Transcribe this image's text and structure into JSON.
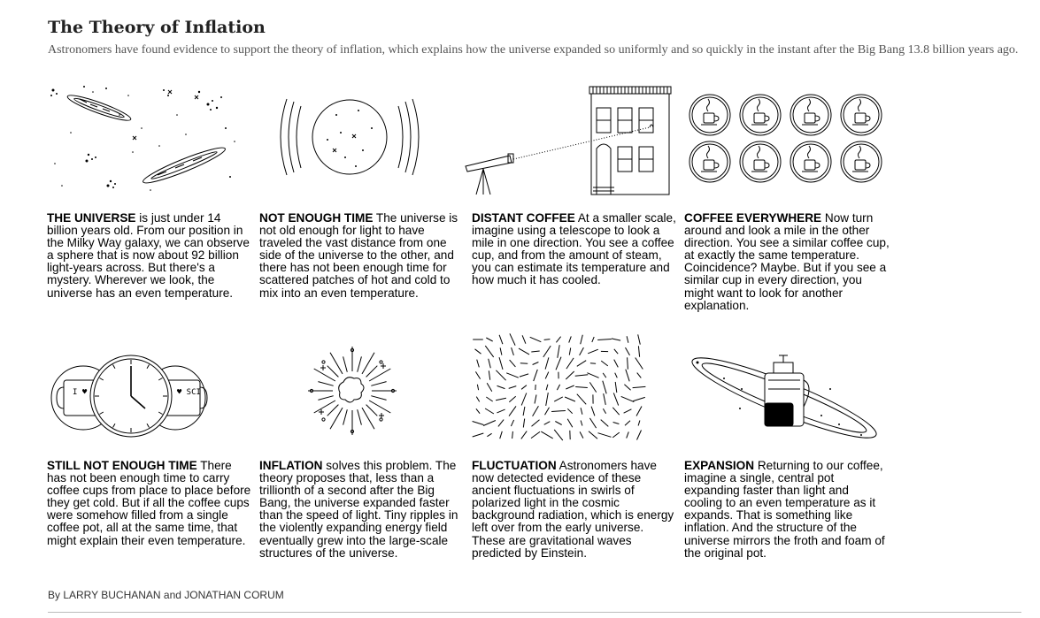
{
  "header": {
    "title": "The Theory of Inflation",
    "subtitle": "Astronomers have found evidence to support the theory of inflation, which explains how the universe expanded so uniformly and so quickly in the instant after the Big Bang 13.8 billion years ago."
  },
  "panels": [
    {
      "heading": "THE UNIVERSE",
      "body": " is just under 14 billion years old. From our position in the Milky Way galaxy, we can observe a sphere that is now about 92 billion light-years across. But there's a mystery. Wherever we look, the universe has an even temperature."
    },
    {
      "heading": "NOT ENOUGH TIME",
      "body": " The universe is not old enough for light to have traveled the vast distance from one side of the universe to the other, and there has not been enough time for scattered patches of hot and cold to mix into an even temperature."
    },
    {
      "heading": "DISTANT COFFEE",
      "body": " At a smaller scale, imagine using a telescope to look a mile in one direction. You see a coffee cup, and from the amount of steam, you can estimate its temperature and how much it has cooled."
    },
    {
      "heading": "COFFEE EVERYWHERE",
      "body": " Now turn around and look a mile in the other direction. You see a similar coffee cup, at exactly the same temperature. Coincidence? Maybe. But if you see a similar cup in every direction, you might want to look for another explanation."
    },
    {
      "heading": "STILL NOT ENOUGH TIME",
      "body": " There has not been enough time to carry coffee cups from place to place before they get cold. But if all the coffee cups were somehow filled from a single coffee pot, all at the same time, that might explain their even temperature."
    },
    {
      "heading": "INFLATION",
      "body": " solves this problem. The theory proposes that, less than a trillionth of a second after the Big Bang, the universe expanded faster than the speed of light. Tiny ripples in the violently expanding energy field eventually grew into the large-scale structures of the universe."
    },
    {
      "heading": "FLUCTUATION",
      "body": " Astronomers have now detected evidence of these ancient fluctuations in swirls of polarized light in the cosmic background radiation, which is energy left over from the early universe. These are gravitational waves predicted by Einstein."
    },
    {
      "heading": "EXPANSION",
      "body": " Returning to our coffee, imagine a single, central pot expanding faster than light and cooling to an even temperature as it expands. That is something like inflation. And the structure of the universe mirrors the froth and foam of the original pot."
    }
  ],
  "mug_labels": {
    "left": "I ♥ SCI",
    "right": "I ♥ SCI"
  },
  "byline": "By LARRY BUCHANAN and JONATHAN CORUM"
}
